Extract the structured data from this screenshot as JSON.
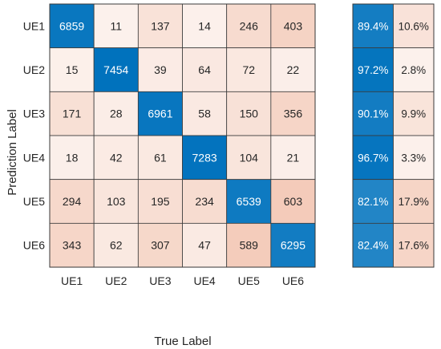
{
  "chart_data": {
    "type": "heatmap",
    "title": "",
    "xlabel": "True Label",
    "ylabel": "Prediction Label",
    "x_categories": [
      "UE1",
      "UE2",
      "UE3",
      "UE4",
      "UE5",
      "UE6"
    ],
    "y_categories": [
      "UE1",
      "UE2",
      "UE3",
      "UE4",
      "UE5",
      "UE6"
    ],
    "matrix": [
      [
        6859,
        11,
        137,
        14,
        246,
        403
      ],
      [
        15,
        7454,
        39,
        64,
        72,
        22
      ],
      [
        171,
        28,
        6961,
        58,
        150,
        356
      ],
      [
        18,
        42,
        61,
        7283,
        104,
        21
      ],
      [
        294,
        103,
        195,
        234,
        6539,
        603
      ],
      [
        343,
        62,
        307,
        47,
        589,
        6295
      ]
    ],
    "row_summary": [
      [
        "89.4%",
        "10.6%"
      ],
      [
        "97.2%",
        "2.8%"
      ],
      [
        "90.1%",
        "9.9%"
      ],
      [
        "96.7%",
        "3.3%"
      ],
      [
        "82.1%",
        "17.9%"
      ],
      [
        "82.4%",
        "17.6%"
      ]
    ],
    "row_summary_fractions": [
      [
        0.894,
        0.106
      ],
      [
        0.972,
        0.028
      ],
      [
        0.901,
        0.099
      ],
      [
        0.967,
        0.033
      ],
      [
        0.821,
        0.179
      ],
      [
        0.824,
        0.176
      ]
    ],
    "colors": {
      "diagonal": "#0072bd",
      "off_diagonal": "#d95319",
      "grid_line": "#3a3a3a",
      "text_dark": "#262626",
      "text_light": "#ffffff"
    }
  }
}
